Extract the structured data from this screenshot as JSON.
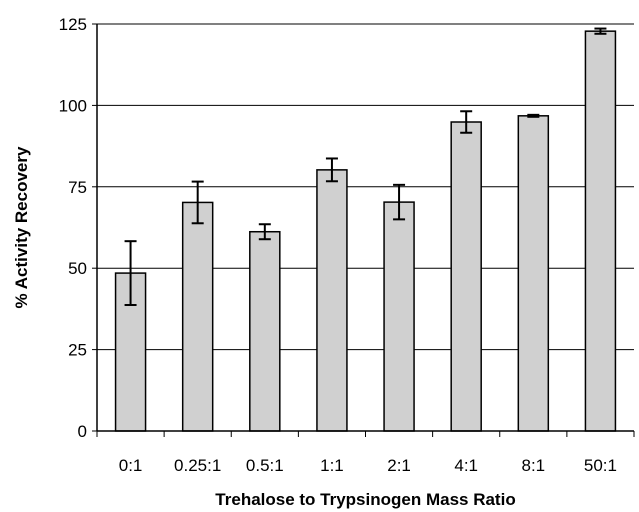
{
  "chart_data": {
    "type": "bar",
    "title": "",
    "xlabel": "Trehalose to Trypsinogen Mass Ratio",
    "ylabel": "% Activity Recovery",
    "categories": [
      "0:1",
      "0.25:1",
      "0.5:1",
      "1:1",
      "2:1",
      "4:1",
      "8:1",
      "50:1"
    ],
    "values": [
      48.5,
      70.2,
      61.2,
      80.2,
      70.3,
      94.9,
      96.8,
      122.8
    ],
    "errors": [
      9.8,
      6.4,
      2.3,
      3.5,
      5.3,
      3.3,
      0.3,
      0.8
    ],
    "ylim": [
      0,
      125
    ],
    "yticks": [
      0,
      25,
      50,
      75,
      100,
      125
    ],
    "grid": true,
    "bar_color": "#d0d0d0",
    "edge_color": "#000000"
  }
}
